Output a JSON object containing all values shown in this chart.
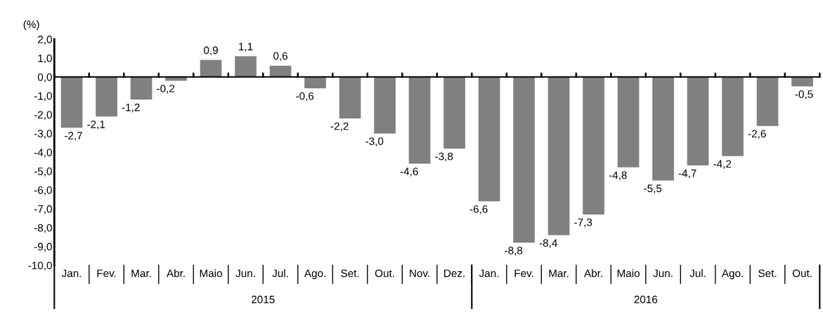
{
  "chart_data": {
    "type": "bar",
    "ylabel": "(%)",
    "categories": [
      "Jan.",
      "Fev.",
      "Mar.",
      "Abr.",
      "Maio",
      "Jun.",
      "Jul.",
      "Ago.",
      "Set.",
      "Out.",
      "Nov.",
      "Dez.",
      "Jan.",
      "Fev.",
      "Mar.",
      "Abr.",
      "Maio",
      "Jun.",
      "Jul.",
      "Ago.",
      "Set.",
      "Out."
    ],
    "values": [
      -2.7,
      -2.1,
      -1.2,
      -0.2,
      0.9,
      1.1,
      0.6,
      -0.6,
      -2.2,
      -3.0,
      -4.6,
      -3.8,
      -6.6,
      -8.8,
      -8.4,
      -7.3,
      -4.8,
      -5.5,
      -4.7,
      -4.2,
      -2.6,
      -0.5
    ],
    "value_labels": [
      "-2,7",
      "-2,1",
      "-1,2",
      "-0,2",
      "0,9",
      "1,1",
      "0,6",
      "-0,6",
      "-2,2",
      "-3,0",
      "-4,6",
      "-3,8",
      "-6,6",
      "-8,8",
      "-8,4",
      "-7,3",
      "-4,8",
      "-5,5",
      "-4,7",
      "-4,2",
      "-2,6",
      "-0,5"
    ],
    "color": "#808080",
    "ylim": [
      -10,
      2
    ],
    "yticks": [
      {
        "value": 2,
        "label": "2,0"
      },
      {
        "value": 1,
        "label": "1,0"
      },
      {
        "value": 0,
        "label": "0,0"
      },
      {
        "value": -1,
        "label": "-1,0"
      },
      {
        "value": -2,
        "label": "-2,0"
      },
      {
        "value": -3,
        "label": "-3,0"
      },
      {
        "value": -4,
        "label": "-4,0"
      },
      {
        "value": -5,
        "label": "-5,0"
      },
      {
        "value": -6,
        "label": "-6,0"
      },
      {
        "value": -7,
        "label": "-7,0"
      },
      {
        "value": -8,
        "label": "-8,0"
      },
      {
        "value": -9,
        "label": "-9,0"
      },
      {
        "value": -10,
        "label": "-10,0"
      }
    ],
    "annotations": [
      "2015",
      "2016"
    ],
    "ref_lines": [
      {
        "axis": "y",
        "value": 0,
        "color": "#000000",
        "line_style": "solid"
      }
    ],
    "grid": false,
    "legend": false
  }
}
